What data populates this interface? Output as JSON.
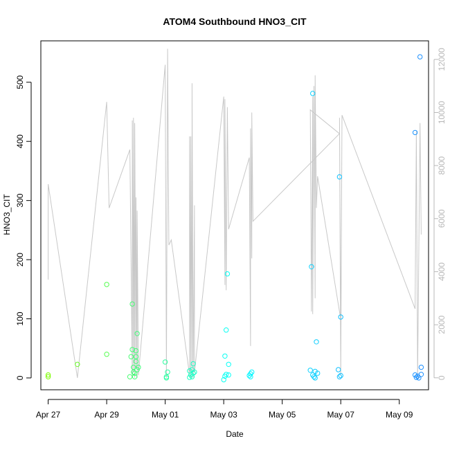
{
  "chart_data": {
    "type": "scatter",
    "title": "ATOM4 Southbound HNO3_CIT",
    "xlabel": "Date",
    "ylabel": "HNO3_CIT",
    "x_ticks": [
      "Apr 27",
      "Apr 29",
      "May 01",
      "May 03",
      "May 05",
      "May 07",
      "May 09"
    ],
    "y_ticks": [
      "0",
      "100",
      "200",
      "300",
      "400",
      "500"
    ],
    "y2_ticks": [
      "0",
      "2000",
      "4000",
      "6000",
      "8000",
      "10000",
      "12000"
    ],
    "xlim": [
      "2018-04-26T18:00",
      "2018-05-10T00:00"
    ],
    "ylim": [
      -20,
      570
    ],
    "y2lim": [
      -450,
      12700
    ],
    "colors": {
      "scatter_ramp": [
        "#7cfc00",
        "#00ffff",
        "#1e90ff"
      ],
      "secondary_trace": "#c8c8c8",
      "secondary_axis": "#b8b8b8"
    },
    "series": [
      {
        "values": [
          [
            "2018-04-27T00:00",
            5
          ],
          [
            "2018-04-27T00:00",
            2
          ],
          [
            "2018-04-28T00:00",
            23
          ],
          [
            "2018-04-29T00:00",
            158
          ],
          [
            "2018-04-29T00:00",
            40
          ],
          [
            "2018-04-29T19:00",
            2
          ],
          [
            "2018-04-29T20:00",
            36
          ],
          [
            "2018-04-29T21:00",
            48
          ],
          [
            "2018-04-29T21:00",
            125
          ],
          [
            "2018-04-29T22:00",
            10
          ],
          [
            "2018-04-29T22:00",
            18
          ],
          [
            "2018-04-29T23:00",
            2
          ],
          [
            "2018-04-29T23:00",
            8
          ],
          [
            "2018-04-30T00:00",
            36
          ],
          [
            "2018-04-30T00:00",
            46
          ],
          [
            "2018-04-30T00:00",
            28
          ],
          [
            "2018-04-30T01:00",
            14
          ],
          [
            "2018-04-30T01:00",
            75
          ],
          [
            "2018-04-30T02:00",
            18
          ],
          [
            "2018-05-01T00:00",
            27
          ],
          [
            "2018-05-01T01:00",
            2
          ],
          [
            "2018-05-01T01:00",
            0
          ],
          [
            "2018-05-01T02:00",
            10
          ],
          [
            "2018-05-01T20:00",
            1
          ],
          [
            "2018-05-01T20:00",
            12
          ],
          [
            "2018-05-01T21:00",
            5
          ],
          [
            "2018-05-01T22:00",
            2
          ],
          [
            "2018-05-01T22:00",
            14
          ],
          [
            "2018-05-01T23:00",
            8
          ],
          [
            "2018-05-01T23:00",
            24
          ],
          [
            "2018-05-02T00:00",
            10
          ],
          [
            "2018-05-03T00:00",
            -3
          ],
          [
            "2018-05-03T01:00",
            37
          ],
          [
            "2018-05-03T01:00",
            3
          ],
          [
            "2018-05-03T02:00",
            6
          ],
          [
            "2018-05-03T02:00",
            81
          ],
          [
            "2018-05-03T03:00",
            176
          ],
          [
            "2018-05-03T04:00",
            23
          ],
          [
            "2018-05-03T04:00",
            5
          ],
          [
            "2018-05-03T21:00",
            4
          ],
          [
            "2018-05-03T22:00",
            2
          ],
          [
            "2018-05-03T22:00",
            7
          ],
          [
            "2018-05-03T23:00",
            10
          ],
          [
            "2018-05-05T23:00",
            13
          ],
          [
            "2018-05-06T00:00",
            188
          ],
          [
            "2018-05-06T01:00",
            481
          ],
          [
            "2018-05-06T01:00",
            5
          ],
          [
            "2018-05-06T02:00",
            2
          ],
          [
            "2018-05-06T03:00",
            11
          ],
          [
            "2018-05-06T03:00",
            0
          ],
          [
            "2018-05-06T04:00",
            61
          ],
          [
            "2018-05-06T05:00",
            8
          ],
          [
            "2018-05-06T22:00",
            14
          ],
          [
            "2018-05-06T23:00",
            2
          ],
          [
            "2018-05-06T23:00",
            340
          ],
          [
            "2018-05-07T00:00",
            103
          ],
          [
            "2018-05-07T00:00",
            4
          ],
          [
            "2018-05-09T13:00",
            415
          ],
          [
            "2018-05-09T13:00",
            5
          ],
          [
            "2018-05-09T14:00",
            1
          ],
          [
            "2018-05-09T15:00",
            3
          ],
          [
            "2018-05-09T16:00",
            0
          ],
          [
            "2018-05-09T17:00",
            543
          ],
          [
            "2018-05-09T18:00",
            18
          ],
          [
            "2018-05-09T18:00",
            6
          ]
        ]
      }
    ],
    "secondary_series": {
      "axis": "right",
      "values": [
        [
          "2018-04-27T00:00",
          3700
        ],
        [
          "2018-04-27T00:00",
          7300
        ],
        [
          "2018-04-28T00:00",
          0
        ],
        [
          "2018-04-29T00:00",
          10400
        ],
        [
          "2018-04-29T02:00",
          6400
        ],
        [
          "2018-04-29T19:00",
          8600
        ],
        [
          "2018-04-29T21:00",
          0
        ],
        [
          "2018-04-29T21:00",
          9700
        ],
        [
          "2018-04-29T22:00",
          200
        ],
        [
          "2018-04-29T22:00",
          9800
        ],
        [
          "2018-04-29T23:00",
          0
        ],
        [
          "2018-04-29T23:00",
          9600
        ],
        [
          "2018-04-30T00:00",
          400
        ],
        [
          "2018-04-30T00:00",
          6800
        ],
        [
          "2018-04-30T01:00",
          0
        ],
        [
          "2018-04-30T01:00",
          6300
        ],
        [
          "2018-04-30T02:00",
          100
        ],
        [
          "2018-05-01T00:00",
          11800
        ],
        [
          "2018-05-01T01:00",
          0
        ],
        [
          "2018-05-01T02:00",
          12400
        ],
        [
          "2018-05-01T03:00",
          5000
        ],
        [
          "2018-05-01T05:00",
          5200
        ],
        [
          "2018-05-01T20:00",
          100
        ],
        [
          "2018-05-01T20:00",
          9100
        ],
        [
          "2018-05-01T21:00",
          0
        ],
        [
          "2018-05-01T21:00",
          9100
        ],
        [
          "2018-05-01T22:00",
          200
        ],
        [
          "2018-05-01T22:00",
          11100
        ],
        [
          "2018-05-01T23:00",
          0
        ],
        [
          "2018-05-02T00:00",
          6500
        ],
        [
          "2018-05-02T00:00",
          200
        ],
        [
          "2018-05-03T00:00",
          10600
        ],
        [
          "2018-05-03T01:00",
          3500
        ],
        [
          "2018-05-03T01:00",
          10500
        ],
        [
          "2018-05-03T02:00",
          3300
        ],
        [
          "2018-05-03T03:00",
          10200
        ],
        [
          "2018-05-03T04:00",
          5600
        ],
        [
          "2018-05-03T21:00",
          8300
        ],
        [
          "2018-05-03T22:00",
          1200
        ],
        [
          "2018-05-03T22:00",
          9400
        ],
        [
          "2018-05-03T23:00",
          4500
        ],
        [
          "2018-05-03T23:00",
          10000
        ],
        [
          "2018-05-04T00:00",
          5900
        ],
        [
          "2018-05-06T23:00",
          9200
        ],
        [
          "2018-05-05T23:00",
          10100
        ],
        [
          "2018-05-06T00:00",
          2500
        ],
        [
          "2018-05-06T01:00",
          10600
        ],
        [
          "2018-05-06T01:00",
          2400
        ],
        [
          "2018-05-06T02:00",
          11000
        ],
        [
          "2018-05-06T03:00",
          3000
        ],
        [
          "2018-05-06T03:00",
          11400
        ],
        [
          "2018-05-06T04:00",
          6400
        ],
        [
          "2018-05-06T05:00",
          7600
        ],
        [
          "2018-05-07T00:00",
          2200
        ],
        [
          "2018-05-06T23:00",
          9800
        ],
        [
          "2018-05-07T00:00",
          100
        ],
        [
          "2018-05-07T01:00",
          9900
        ],
        [
          "2018-05-09T13:00",
          2600
        ],
        [
          "2018-05-09T14:00",
          9300
        ],
        [
          "2018-05-09T15:00",
          0
        ],
        [
          "2018-05-09T17:00",
          9600
        ],
        [
          "2018-05-09T18:00",
          5400
        ]
      ]
    },
    "grid": false,
    "legend": "none"
  }
}
